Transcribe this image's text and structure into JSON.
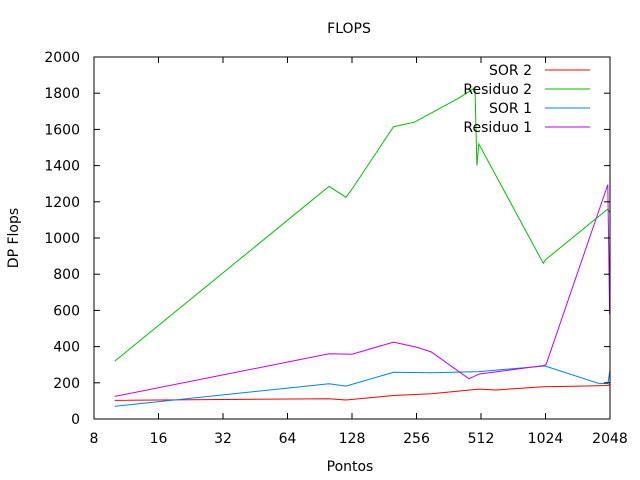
{
  "chart_data": {
    "type": "line",
    "title": "FLOPS",
    "xlabel": "Pontos",
    "ylabel": "DP Flops",
    "xscale": "log2",
    "xlim": [
      8,
      2048
    ],
    "ylim": [
      0,
      2000
    ],
    "xticks": [
      8,
      16,
      32,
      64,
      128,
      256,
      512,
      1024,
      2048
    ],
    "yticks": [
      0,
      200,
      400,
      600,
      800,
      1000,
      1200,
      1400,
      1600,
      1800,
      2000
    ],
    "grid": false,
    "legend_position": "top-right",
    "series": [
      {
        "name": "SOR 2",
        "color": "#ff0000",
        "points": [
          [
            10,
            103
          ],
          [
            100,
            112
          ],
          [
            120,
            105
          ],
          [
            200,
            130
          ],
          [
            300,
            140
          ],
          [
            500,
            165
          ],
          [
            600,
            160
          ],
          [
            1000,
            178
          ],
          [
            1500,
            182
          ],
          [
            2000,
            185
          ],
          [
            2048,
            190
          ]
        ]
      },
      {
        "name": "Residuo 2",
        "color": "#00c000",
        "points": [
          [
            10,
            320
          ],
          [
            100,
            1285
          ],
          [
            120,
            1225
          ],
          [
            128,
            1270
          ],
          [
            200,
            1615
          ],
          [
            250,
            1640
          ],
          [
            400,
            1770
          ],
          [
            480,
            1830
          ],
          [
            490,
            1400
          ],
          [
            500,
            1520
          ],
          [
            1000,
            860
          ],
          [
            1024,
            880
          ],
          [
            2000,
            1160
          ],
          [
            2048,
            1140
          ]
        ]
      },
      {
        "name": "SOR 1",
        "color": "#0080ff",
        "points": [
          [
            10,
            70
          ],
          [
            100,
            195
          ],
          [
            120,
            182
          ],
          [
            200,
            258
          ],
          [
            300,
            255
          ],
          [
            500,
            262
          ],
          [
            1000,
            292
          ],
          [
            1024,
            292
          ],
          [
            1800,
            198
          ],
          [
            2000,
            195
          ],
          [
            2048,
            270
          ]
        ]
      },
      {
        "name": "Residuo 1",
        "color": "#c000ff",
        "points": [
          [
            10,
            125
          ],
          [
            100,
            360
          ],
          [
            128,
            358
          ],
          [
            200,
            425
          ],
          [
            260,
            395
          ],
          [
            300,
            370
          ],
          [
            450,
            222
          ],
          [
            500,
            248
          ],
          [
            1000,
            295
          ],
          [
            1030,
            300
          ],
          [
            2000,
            1295
          ],
          [
            2040,
            580
          ],
          [
            2048,
            1050
          ]
        ]
      }
    ]
  }
}
